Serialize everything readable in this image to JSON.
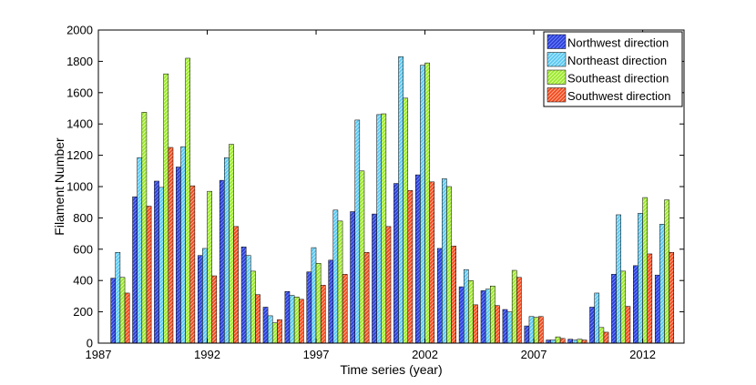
{
  "chart_data": {
    "type": "bar",
    "xlabel": "Time series (year)",
    "ylabel": "Filament Number",
    "xlim": [
      1987,
      2013.9
    ],
    "ylim": [
      0,
      2000
    ],
    "x_ticks": [
      1987,
      1992,
      1997,
      2002,
      2007,
      2012
    ],
    "y_ticks": [
      0,
      200,
      400,
      600,
      800,
      1000,
      1200,
      1400,
      1600,
      1800,
      2000
    ],
    "grid": false,
    "legend_position": "top-right",
    "x": [
      1988,
      1989,
      1990,
      1991,
      1992,
      1993,
      1994,
      1995,
      1996,
      1997,
      1998,
      1999,
      2000,
      2001,
      2002,
      2003,
      2004,
      2005,
      2006,
      2007,
      2008,
      2009,
      2010,
      2011,
      2012,
      2013
    ],
    "series": [
      {
        "name": "Northwest direction",
        "color": "#2b3fd6",
        "stripe": "#6f84ff",
        "values": [
          415,
          935,
          1035,
          1125,
          560,
          1040,
          615,
          230,
          330,
          455,
          530,
          840,
          825,
          1020,
          1075,
          605,
          360,
          335,
          215,
          110,
          20,
          25,
          230,
          440,
          495,
          435
        ]
      },
      {
        "name": "Northeast direction",
        "color": "#5bc7f0",
        "stripe": "#b3ecff",
        "values": [
          580,
          1185,
          995,
          1255,
          605,
          1185,
          560,
          175,
          305,
          610,
          850,
          1425,
          1460,
          1830,
          1775,
          1050,
          470,
          345,
          200,
          170,
          20,
          20,
          320,
          820,
          830,
          760
        ]
      },
      {
        "name": "Southeast direction",
        "color": "#9ae62e",
        "stripe": "#dcff9a",
        "values": [
          420,
          1475,
          1720,
          1820,
          970,
          1270,
          460,
          130,
          295,
          510,
          780,
          1100,
          1465,
          1565,
          1790,
          1000,
          400,
          365,
          465,
          165,
          40,
          25,
          100,
          460,
          930,
          915
        ]
      },
      {
        "name": "Southwest direction",
        "color": "#f0481e",
        "stripe": "#ffab8e",
        "values": [
          320,
          875,
          1250,
          1005,
          430,
          745,
          310,
          150,
          280,
          370,
          440,
          580,
          745,
          975,
          1030,
          620,
          245,
          240,
          420,
          170,
          30,
          20,
          70,
          235,
          570,
          580
        ]
      }
    ]
  }
}
